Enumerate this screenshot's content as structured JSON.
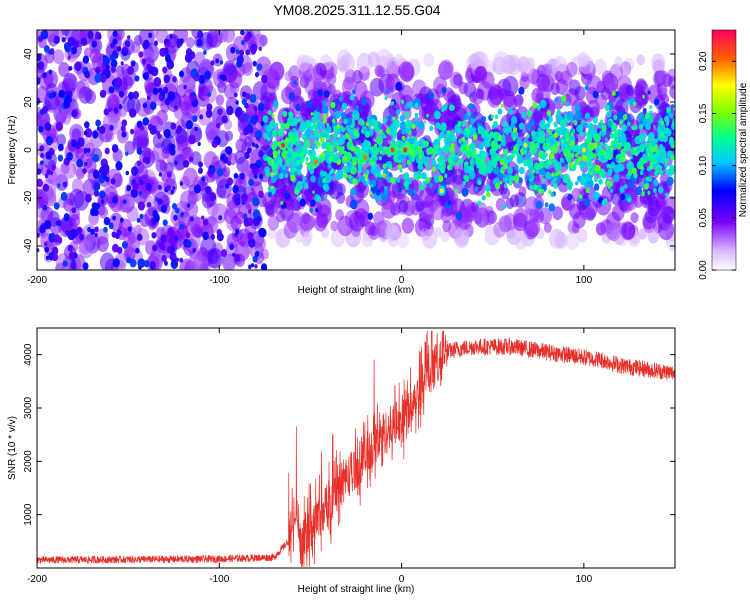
{
  "title": "YM08.2025.311.12.55.G04",
  "chart_data": [
    {
      "type": "heatmap",
      "xlabel": "Height of straight line (km)",
      "ylabel": "Frequency (Hz)",
      "xlim": [
        -200,
        150
      ],
      "ylim": [
        -50,
        50
      ],
      "xticks": [
        -200,
        -100,
        0,
        100
      ],
      "xtick_labels": [
        "-200",
        "-100",
        "0",
        "100"
      ],
      "yticks": [
        -40,
        -20,
        0,
        20,
        40
      ],
      "ytick_labels": [
        "-40",
        "-20",
        "0",
        "20",
        "40"
      ],
      "colorbar": {
        "label": "Normalized spectral amplitude",
        "range": [
          0.0,
          0.23
        ],
        "ticks": [
          0.0,
          0.05,
          0.1,
          0.15,
          0.2
        ],
        "tick_labels": [
          "0.00",
          "0.05",
          "0.10",
          "0.15",
          "0.20"
        ]
      },
      "description_values": {
        "noise_floor_band_left_x": [
          -200,
          -75
        ],
        "signal_band_freq_range": [
          -25,
          25
        ],
        "hotspots": [
          {
            "x": -65,
            "y": 2,
            "v": 0.22
          },
          {
            "x": -47,
            "y": -5,
            "v": 0.2
          },
          {
            "x": -20,
            "y": -3,
            "v": 0.2
          },
          {
            "x": -5,
            "y": 0,
            "v": 0.21
          },
          {
            "x": 2,
            "y": 0,
            "v": 0.22
          },
          {
            "x": 22,
            "y": -17,
            "v": 0.18
          },
          {
            "x": 68,
            "y": 2,
            "v": 0.17
          },
          {
            "x": 100,
            "y": 0,
            "v": 0.18
          }
        ]
      }
    },
    {
      "type": "line",
      "xlabel": "Height of straight line (km)",
      "ylabel": "SNR (10 * v/v)",
      "xlim": [
        -200,
        150
      ],
      "ylim": [
        0,
        4500
      ],
      "xticks": [
        -200,
        -100,
        0,
        100
      ],
      "xtick_labels": [
        "-200",
        "-100",
        "0",
        "100"
      ],
      "yticks": [
        1000,
        2000,
        3000,
        4000
      ],
      "ytick_labels": [
        "1000",
        "2000",
        "3000",
        "4000"
      ],
      "color": "#e8302a",
      "series": [
        {
          "name": "SNR",
          "x": [
            -200,
            -150,
            -100,
            -70,
            -62,
            -58,
            -55,
            -50,
            -45,
            -40,
            -35,
            -30,
            -25,
            -20,
            -15,
            -10,
            -5,
            0,
            5,
            10,
            15,
            20,
            25,
            30,
            40,
            50,
            60,
            70,
            80,
            90,
            100,
            110,
            120,
            130,
            140,
            150
          ],
          "y": [
            150,
            160,
            170,
            200,
            500,
            1200,
            400,
            800,
            1000,
            1200,
            1500,
            1700,
            1900,
            2100,
            2300,
            2500,
            2650,
            2800,
            3100,
            3400,
            3650,
            3900,
            4050,
            4100,
            4150,
            4150,
            4150,
            4100,
            4050,
            4000,
            3950,
            3900,
            3800,
            3750,
            3700,
            3650
          ]
        }
      ]
    }
  ]
}
